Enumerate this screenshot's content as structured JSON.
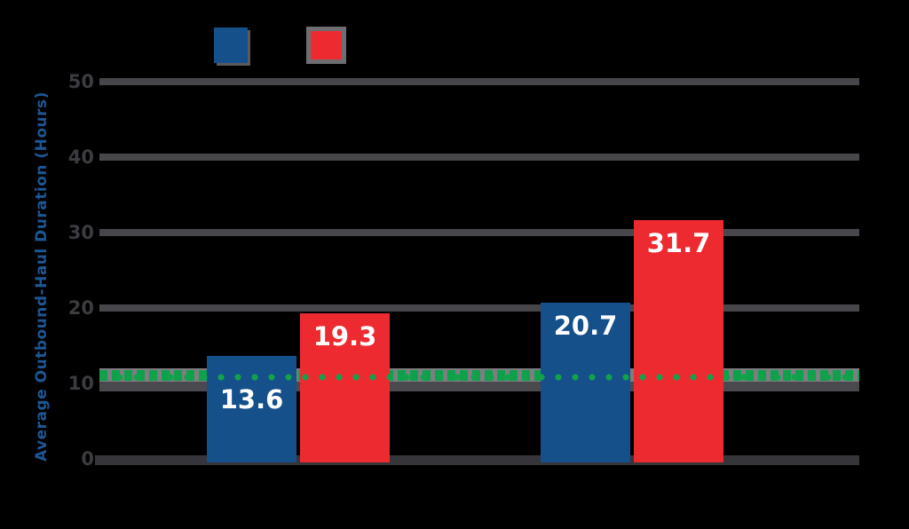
{
  "chart_data": {
    "type": "bar",
    "title": "",
    "categories": [
      "",
      ""
    ],
    "series": [
      {
        "name": "",
        "color": "#15508b",
        "values": [
          13.6,
          20.7
        ]
      },
      {
        "name": "",
        "color": "#ee2a31",
        "values": [
          19.3,
          31.7
        ]
      }
    ],
    "bar_value_labels": [
      "13.6",
      "19.3",
      "20.7",
      "31.7"
    ],
    "ylabel": "Average Outbound-Haul Duration (Hours)",
    "ylim": [
      0,
      50
    ],
    "yticks": [
      0,
      10,
      20,
      30,
      40,
      50
    ],
    "ytick_labels": [
      "0",
      "10",
      "20",
      "30",
      "40",
      "50"
    ],
    "grid": "horizontal",
    "legend_position": "top",
    "reference_line": {
      "value": 10.8,
      "color": "#12a24b",
      "style": "dotted"
    }
  },
  "colors": {
    "background": "#000000",
    "gridline": "#46464b",
    "axis_line": "#35353a",
    "tick_text": "#3b3b40",
    "y_title_text": "#1c5795",
    "bar_value_text": "#ffffff",
    "reference_band_light": "#7e7e82",
    "reference_band_dark": "#4a4a4e",
    "reference_dot_green": "#12a24b",
    "series_blue": "#15508b",
    "series_red": "#ee2a31"
  }
}
